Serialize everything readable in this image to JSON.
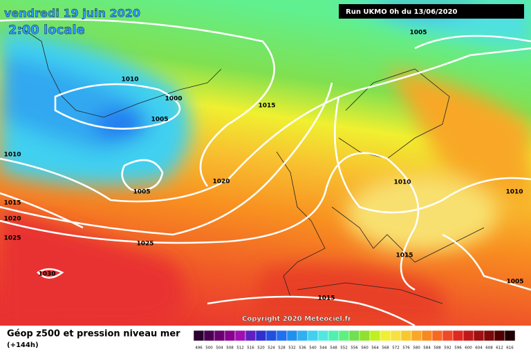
{
  "header": {
    "title": "vendredi 19 juin 2020",
    "subtitle": "2:00 locale"
  },
  "run_info": "Run UKMO 0h du 13/06/2020",
  "copyright": "Copyright 2020 Meteociel.fr",
  "isobar_labels": [
    "1005",
    "1010",
    "1000",
    "1005",
    "1015",
    "1010",
    "1005",
    "1020",
    "1015",
    "1020",
    "1025",
    "1025",
    "1030",
    "1010",
    "1010",
    "1015",
    "1005",
    "1015"
  ],
  "legend": {
    "title": "Géop z500 et pression niveau mer",
    "subtitle": "(+144h)",
    "scale": [
      {
        "label": "496",
        "color": "#2a0030"
      },
      {
        "label": "500",
        "color": "#4a0050"
      },
      {
        "label": "504",
        "color": "#6a0070"
      },
      {
        "label": "508",
        "color": "#8a0090"
      },
      {
        "label": "512",
        "color": "#a010b0"
      },
      {
        "label": "516",
        "color": "#6020c0"
      },
      {
        "label": "520",
        "color": "#3030d0"
      },
      {
        "label": "524",
        "color": "#2050e0"
      },
      {
        "label": "528",
        "color": "#2070f0"
      },
      {
        "label": "532",
        "color": "#2090f0"
      },
      {
        "label": "536",
        "color": "#30b0f0"
      },
      {
        "label": "540",
        "color": "#40d0f0"
      },
      {
        "label": "544",
        "color": "#50e8e0"
      },
      {
        "label": "548",
        "color": "#50f0b0"
      },
      {
        "label": "552",
        "color": "#60f080"
      },
      {
        "label": "556",
        "color": "#70e050"
      },
      {
        "label": "560",
        "color": "#90e030"
      },
      {
        "label": "564",
        "color": "#c0f020"
      },
      {
        "label": "568",
        "color": "#f0f030"
      },
      {
        "label": "572",
        "color": "#f8e040"
      },
      {
        "label": "576",
        "color": "#f8c830"
      },
      {
        "label": "580",
        "color": "#f8a828"
      },
      {
        "label": "584",
        "color": "#f88820"
      },
      {
        "label": "588",
        "color": "#f86820"
      },
      {
        "label": "592",
        "color": "#f04828"
      },
      {
        "label": "596",
        "color": "#e02820"
      },
      {
        "label": "600",
        "color": "#c01818"
      },
      {
        "label": "604",
        "color": "#a01010"
      },
      {
        "label": "608",
        "color": "#800808"
      },
      {
        "label": "612",
        "color": "#500000"
      },
      {
        "label": "616",
        "color": "#200000"
      }
    ]
  }
}
